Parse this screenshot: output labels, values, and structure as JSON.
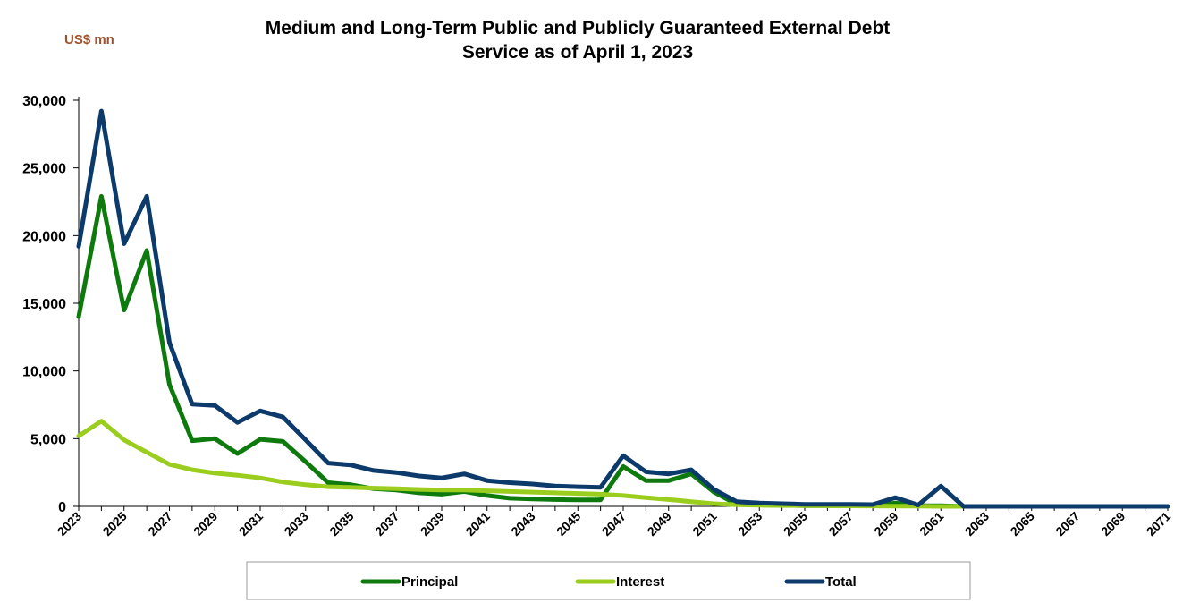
{
  "unit_label": "US$ mn",
  "chart_data": {
    "type": "line",
    "title_line1": "Medium and Long-Term Public and Publicly Guaranteed External Debt",
    "title_line2": "Service as of  April 1, 2023",
    "xlabel": "",
    "ylabel": "US$ mn",
    "ylim": [
      0,
      30000
    ],
    "yticks": [
      0,
      5000,
      10000,
      15000,
      20000,
      25000,
      30000
    ],
    "ytick_labels": [
      "0",
      "5,000",
      "10,000",
      "15,000",
      "20,000",
      "25,000",
      "30,000"
    ],
    "x": [
      2023,
      2024,
      2025,
      2026,
      2027,
      2028,
      2029,
      2030,
      2031,
      2032,
      2033,
      2034,
      2035,
      2036,
      2037,
      2038,
      2039,
      2040,
      2041,
      2042,
      2043,
      2044,
      2045,
      2046,
      2047,
      2048,
      2049,
      2050,
      2051,
      2052,
      2053,
      2054,
      2055,
      2056,
      2057,
      2058,
      2059,
      2060,
      2061,
      2062,
      2063,
      2064,
      2065,
      2066,
      2067,
      2068,
      2069,
      2070,
      2071
    ],
    "xtick_labels": [
      "2023",
      "2025",
      "2027",
      "2029",
      "2031",
      "2033",
      "2035",
      "2037",
      "2039",
      "2041",
      "2043",
      "2045",
      "2047",
      "2049",
      "2051",
      "2053",
      "2055",
      "2057",
      "2059",
      "2061",
      "2063",
      "2065",
      "2067",
      "2069",
      "2071"
    ],
    "legend_position": "bottom",
    "series": [
      {
        "name": "Principal",
        "color": "#0e7a0d",
        "values": [
          14000,
          22900,
          14500,
          18900,
          9000,
          4850,
          5000,
          3900,
          4950,
          4800,
          3300,
          1750,
          1600,
          1300,
          1200,
          1000,
          900,
          1100,
          800,
          600,
          550,
          500,
          480,
          480,
          2950,
          1900,
          1900,
          2400,
          1050,
          150,
          100,
          80,
          50,
          50,
          50,
          30,
          250,
          50,
          50,
          0,
          0,
          0,
          0,
          0,
          0,
          0,
          0,
          0,
          0
        ]
      },
      {
        "name": "Interest",
        "color": "#9acd1e",
        "values": [
          5200,
          6300,
          4900,
          4000,
          3100,
          2700,
          2450,
          2300,
          2100,
          1800,
          1600,
          1450,
          1400,
          1350,
          1300,
          1250,
          1200,
          1200,
          1150,
          1100,
          1050,
          1000,
          950,
          900,
          800,
          650,
          500,
          350,
          200,
          120,
          80,
          60,
          50,
          40,
          30,
          25,
          20,
          10,
          0,
          0,
          0,
          0,
          0,
          0,
          0,
          0,
          0,
          0,
          0
        ]
      },
      {
        "name": "Total",
        "color": "#0b3a6b",
        "values": [
          19200,
          29200,
          19400,
          22900,
          12100,
          7550,
          7450,
          6200,
          7050,
          6600,
          4900,
          3200,
          3050,
          2650,
          2500,
          2250,
          2100,
          2400,
          1900,
          1750,
          1650,
          1500,
          1450,
          1400,
          3750,
          2550,
          2400,
          2700,
          1250,
          350,
          250,
          200,
          150,
          150,
          150,
          130,
          650,
          100,
          1500,
          0,
          0,
          0,
          0,
          0,
          0,
          0,
          0,
          0,
          0
        ]
      }
    ]
  }
}
